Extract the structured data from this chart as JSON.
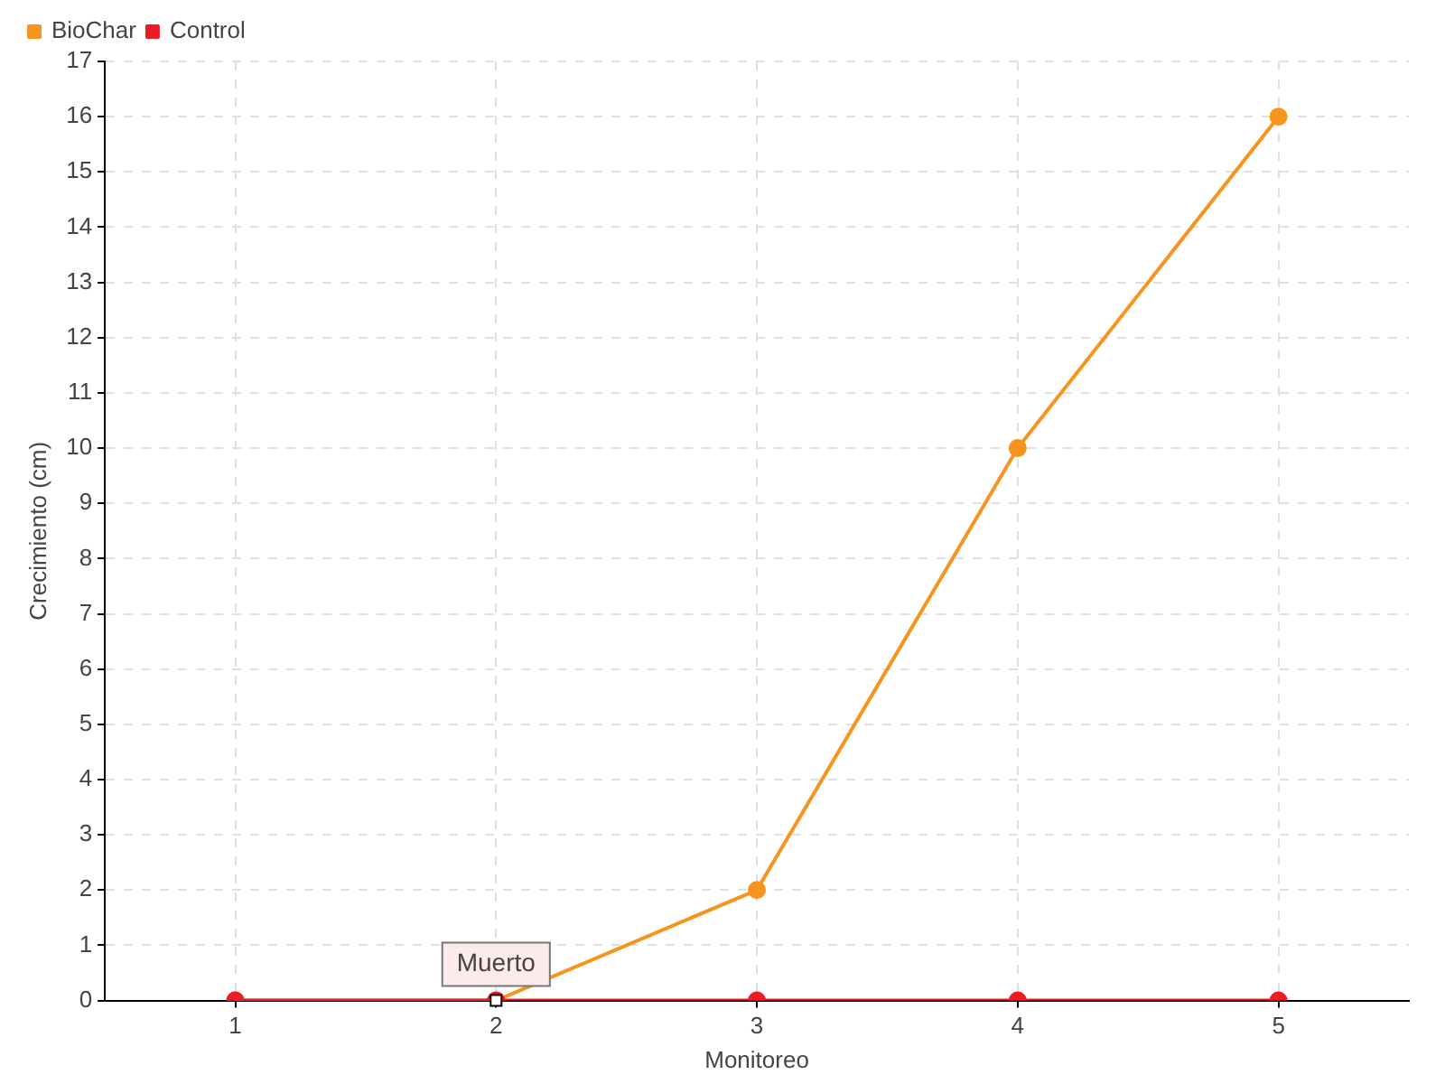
{
  "chart_data": {
    "type": "line",
    "xlabel": "Monitoreo",
    "ylabel": "Crecimiento (cm)",
    "categories": [
      "1",
      "2",
      "3",
      "4",
      "5"
    ],
    "series": [
      {
        "name": "BioChar",
        "color": "#f7941d",
        "values": [
          0,
          0,
          2,
          10,
          16
        ]
      },
      {
        "name": "Control",
        "color": "#ed1c24",
        "values": [
          0,
          0,
          0,
          0,
          0
        ]
      }
    ],
    "ylim": [
      0,
      17
    ],
    "yticks": [
      0,
      1,
      2,
      3,
      4,
      5,
      6,
      7,
      8,
      9,
      10,
      11,
      12,
      13,
      14,
      15,
      16,
      17
    ],
    "grid": true,
    "legend": "top left",
    "marker": "circle",
    "line_style": "solid",
    "annotations": [
      {
        "text": "Muerto",
        "x": "2",
        "y": 0
      }
    ]
  }
}
